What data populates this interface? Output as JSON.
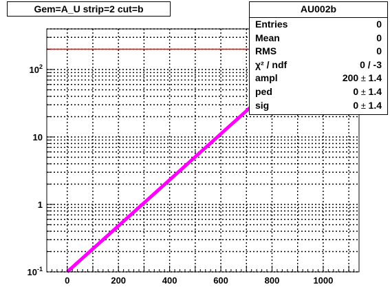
{
  "title": "Gem=A_U strip=2 cut=b",
  "stats": {
    "name": "AU002b",
    "rows": [
      {
        "label": "Entries",
        "value": "0"
      },
      {
        "label": "Mean",
        "value": "0"
      },
      {
        "label": "RMS",
        "value": "0"
      },
      {
        "label": "χ² / ndf",
        "value": "0 / -3"
      },
      {
        "label": "ampl",
        "value": "200",
        "error": "1.4"
      },
      {
        "label": "ped",
        "value": "0",
        "error": "1.4"
      },
      {
        "label": "sig",
        "value": "0",
        "error": "1.4"
      }
    ]
  },
  "colors": {
    "background": "#ffffff",
    "frame": "#000000",
    "grid": "#000000",
    "hist_line": "#ff0000",
    "fit_line": "#ff00ff"
  },
  "chart_data": {
    "type": "line",
    "title": "Gem=A_U strip=2 cut=b",
    "xlabel": "",
    "ylabel": "",
    "xlim": [
      -80,
      1140
    ],
    "ylim": [
      0.1,
      400
    ],
    "yscale": "log",
    "grid": true,
    "x_ticks": [
      0,
      200,
      400,
      600,
      800,
      1000
    ],
    "x_tick_labels": [
      "0",
      "200",
      "400",
      "600",
      "800",
      "1000"
    ],
    "y_ticks": [
      0.1,
      1,
      10,
      100
    ],
    "y_tick_labels": [
      "10⁻¹",
      "1",
      "10",
      "10²"
    ],
    "series": [
      {
        "x": [
          -80,
          1140
        ],
        "y": [
          200,
          200
        ],
        "color": "#ff0000"
      },
      {
        "x": [
          0,
          1050
        ],
        "y": [
          0.1,
          380
        ],
        "color": "#ff00ff"
      }
    ]
  }
}
